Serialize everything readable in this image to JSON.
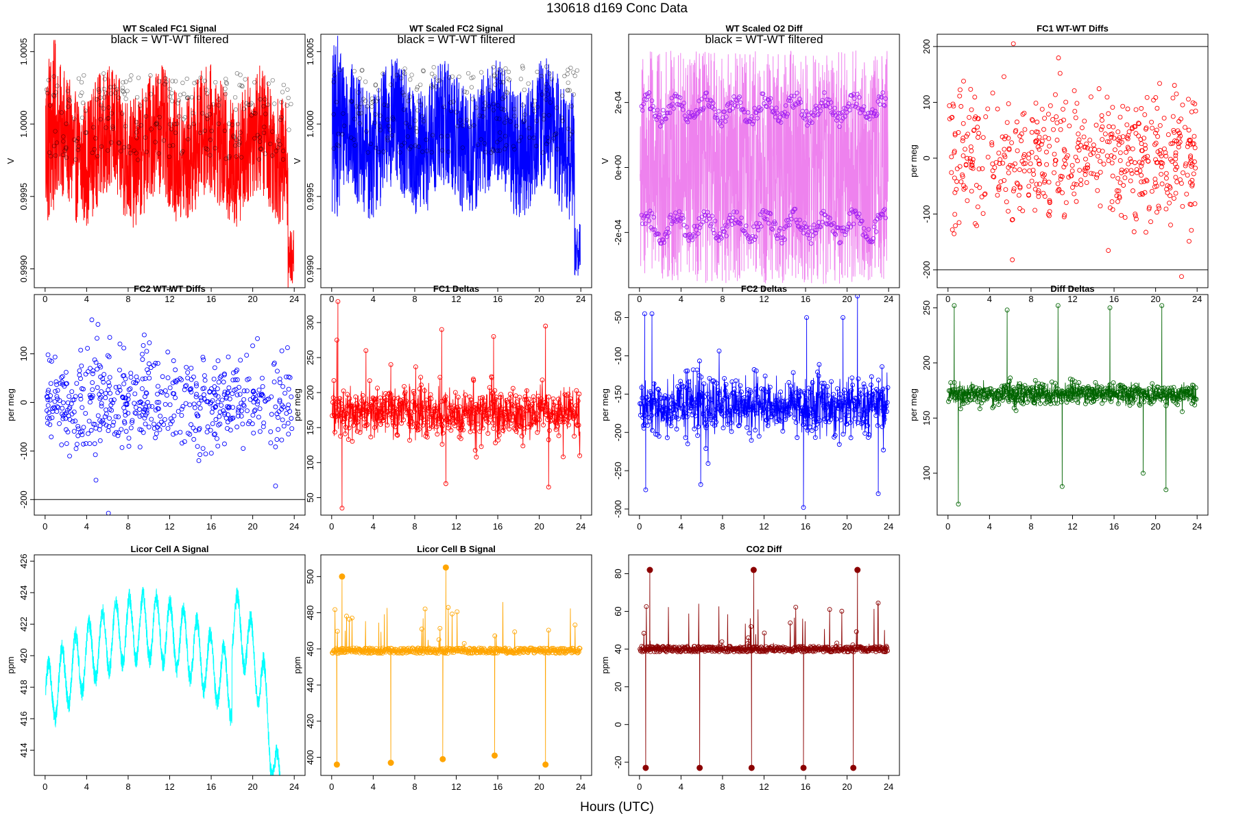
{
  "page": {
    "title": "130618    d169    Conc Data",
    "xlabel": "Hours (UTC)"
  },
  "chart_data": [
    {
      "type": "line",
      "title": "WT Scaled FC1 Signal",
      "note": "black = WT-WT filtered",
      "ylabel": "V",
      "color": "#ff0000",
      "style": "dense",
      "xlim": [
        0,
        24
      ],
      "ylim": [
        0.99887,
        1.00062
      ],
      "xticks": [
        0,
        4,
        8,
        12,
        16,
        20,
        24
      ],
      "yticks": [
        0.999,
        0.9995,
        1.0,
        1.0005
      ],
      "ytick_labels": [
        "0.9990",
        "0.9995",
        "1.0000",
        "1.0005"
      ],
      "series_desc": "raw FC1 signal with WT-WT filtered points (black circles)",
      "centre": 0.99985,
      "spread": 0.00045
    },
    {
      "type": "line",
      "title": "WT Scaled FC2 Signal",
      "note": "black = WT-WT filtered",
      "ylabel": "V",
      "color": "#0000ff",
      "style": "dense",
      "xlim": [
        0,
        24
      ],
      "ylim": [
        0.99887,
        1.00062
      ],
      "xticks": [
        0,
        4,
        8,
        12,
        16,
        20,
        24
      ],
      "yticks": [
        0.999,
        0.9995,
        1.0,
        1.0005
      ],
      "ytick_labels": [
        "0.9990",
        "0.9995",
        "1.0000",
        "1.0005"
      ],
      "series_desc": "raw FC2 signal with WT-WT filtered points (black circles)",
      "centre": 0.9999,
      "spread": 0.00045
    },
    {
      "type": "line",
      "title": "WT Scaled O2 Diff",
      "note": "black = WT-WT filtered",
      "ylabel": "V",
      "color": "#ee82ee",
      "point_color": "#a020f0",
      "style": "split",
      "xlim": [
        0,
        24
      ],
      "ylim": [
        -0.00037,
        0.00041
      ],
      "xticks": [
        0,
        4,
        8,
        12,
        16,
        20,
        24
      ],
      "yticks": [
        -0.0002,
        0,
        0.0002
      ],
      "ytick_labels": [
        "-2e-04",
        "0e+00",
        "2e-04"
      ],
      "series_desc": "O2 difference, two bands near +2e-04 and -2e-04"
    },
    {
      "type": "scatter",
      "title": "FC1 WT-WT Diffs",
      "ylabel": "per meg",
      "color": "#ff0000",
      "style": "scatter",
      "xlim": [
        0,
        24
      ],
      "ylim": [
        -232,
        222
      ],
      "xticks": [
        0,
        4,
        8,
        12,
        16,
        20,
        24
      ],
      "yticks": [
        -200,
        -100,
        0,
        100,
        200
      ],
      "ytick_labels": [
        "-200",
        "-100",
        "0",
        "100",
        "200"
      ],
      "hlines": [
        200,
        -200
      ],
      "spread": 55,
      "outliers": [
        [
          6.3,
          205
        ],
        [
          22.5,
          -212
        ],
        [
          6.2,
          -182
        ],
        [
          1.5,
          138
        ],
        [
          10.8,
          152
        ]
      ]
    },
    {
      "type": "scatter",
      "title": "FC2 WT-WT Diffs",
      "ylabel": "per meg",
      "color": "#0000ff",
      "style": "scatter",
      "xlim": [
        0,
        24
      ],
      "ylim": [
        -232,
        222
      ],
      "xticks": [
        0,
        4,
        8,
        12,
        16,
        20,
        24
      ],
      "yticks": [
        -200,
        -100,
        0,
        100
      ],
      "ytick_labels": [
        "-200",
        "-100",
        "0",
        "100"
      ],
      "hlines": [
        -200
      ],
      "spread": 50,
      "outliers": [
        [
          4.5,
          170
        ],
        [
          6.1,
          -228
        ],
        [
          22.2,
          -172
        ],
        [
          5.0,
          132
        ],
        [
          4.9,
          -160
        ]
      ]
    },
    {
      "type": "line",
      "title": "FC1 Deltas",
      "ylabel": "per meg",
      "color": "#ff0000",
      "style": "deltas",
      "xlim": [
        0,
        24
      ],
      "ylim": [
        25,
        340
      ],
      "xticks": [
        0,
        4,
        8,
        12,
        16,
        20,
        24
      ],
      "yticks": [
        50,
        100,
        150,
        200,
        250,
        300
      ],
      "ytick_labels": [
        "50",
        "100",
        "150",
        "200",
        "250",
        "300"
      ],
      "base": 172,
      "spread": 18,
      "spikes": [
        [
          0.6,
          330
        ],
        [
          1.0,
          35
        ],
        [
          0.5,
          275
        ],
        [
          10.6,
          290
        ],
        [
          11.0,
          70
        ],
        [
          15.6,
          280
        ],
        [
          20.6,
          295
        ],
        [
          20.9,
          65
        ],
        [
          5.7,
          240
        ],
        [
          3.3,
          260
        ]
      ]
    },
    {
      "type": "line",
      "title": "FC2 Deltas",
      "ylabel": "per meg",
      "color": "#0000ff",
      "style": "deltas",
      "xlim": [
        0,
        24
      ],
      "ylim": [
        -308,
        -20
      ],
      "xticks": [
        0,
        4,
        8,
        12,
        16,
        20,
        24
      ],
      "yticks": [
        -300,
        -250,
        -200,
        -150,
        -100,
        -50
      ],
      "ytick_labels": [
        "-300",
        "-250",
        "-200",
        "-150",
        "-100",
        "-50"
      ],
      "base": -165,
      "spread": 18,
      "spikes": [
        [
          0.5,
          -45
        ],
        [
          0.6,
          -275
        ],
        [
          1.2,
          -45
        ],
        [
          15.8,
          -298
        ],
        [
          5.9,
          -268
        ],
        [
          21.0,
          -22
        ],
        [
          23.0,
          -280
        ],
        [
          16.1,
          -50
        ],
        [
          19.6,
          -50
        ]
      ]
    },
    {
      "type": "line",
      "title": "Diff Deltas",
      "ylabel": "per meg",
      "color": "#006400",
      "style": "deltas",
      "xlim": [
        0,
        24
      ],
      "ylim": [
        62,
        262
      ],
      "xticks": [
        0,
        4,
        8,
        12,
        16,
        20,
        24
      ],
      "yticks": [
        100,
        150,
        200,
        250
      ],
      "ytick_labels": [
        "100",
        "150",
        "200",
        "250"
      ],
      "base": 172,
      "spread": 5,
      "spikes": [
        [
          0.6,
          252
        ],
        [
          1.0,
          72
        ],
        [
          5.7,
          248
        ],
        [
          10.6,
          252
        ],
        [
          11.0,
          88
        ],
        [
          15.6,
          250
        ],
        [
          20.6,
          252
        ],
        [
          21.0,
          85
        ],
        [
          18.8,
          100
        ]
      ]
    },
    {
      "type": "line",
      "title": "Licor Cell A Signal",
      "ylabel": "ppm",
      "color": "#00ffff",
      "style": "licorA",
      "xlim": [
        0,
        24
      ],
      "ylim": [
        412.4,
        426.4
      ],
      "xticks": [
        0,
        4,
        8,
        12,
        16,
        20,
        24
      ],
      "yticks": [
        414,
        416,
        418,
        420,
        422,
        424,
        426
      ],
      "ytick_labels": [
        "414",
        "416",
        "418",
        "420",
        "422",
        "424",
        "426"
      ]
    },
    {
      "type": "line",
      "title": "Licor Cell B Signal",
      "ylabel": "ppm",
      "color": "#ffa500",
      "style": "licor",
      "xlim": [
        0,
        24
      ],
      "ylim": [
        390,
        512
      ],
      "xticks": [
        0,
        4,
        8,
        12,
        16,
        20,
        24
      ],
      "yticks": [
        400,
        420,
        440,
        460,
        480,
        500
      ],
      "ytick_labels": [
        "400",
        "420",
        "440",
        "460",
        "480",
        "500"
      ],
      "base": 459,
      "lo": 396,
      "hi": 505,
      "lo_pts": [
        [
          0.5,
          396
        ],
        [
          5.7,
          397
        ],
        [
          10.7,
          399
        ],
        [
          15.7,
          401
        ],
        [
          20.6,
          396
        ]
      ],
      "hi_pts": [
        [
          1.0,
          500
        ],
        [
          11.0,
          505
        ]
      ]
    },
    {
      "type": "line",
      "title": "CO2 Diff",
      "ylabel": "ppm",
      "color": "#8b0000",
      "style": "licor",
      "xlim": [
        0,
        24
      ],
      "ylim": [
        -27,
        90
      ],
      "xticks": [
        0,
        4,
        8,
        12,
        16,
        20,
        24
      ],
      "yticks": [
        -20,
        0,
        20,
        40,
        60,
        80
      ],
      "ytick_labels": [
        "-20",
        "0",
        "20",
        "40",
        "60",
        "80"
      ],
      "base": 40,
      "lo": -23,
      "hi": 82,
      "lo_pts": [
        [
          0.6,
          -23
        ],
        [
          5.8,
          -23
        ],
        [
          10.8,
          -23
        ],
        [
          15.8,
          -23
        ],
        [
          20.6,
          -23
        ]
      ],
      "hi_pts": [
        [
          1.0,
          82
        ],
        [
          11.0,
          82
        ],
        [
          21.0,
          82
        ]
      ]
    }
  ]
}
